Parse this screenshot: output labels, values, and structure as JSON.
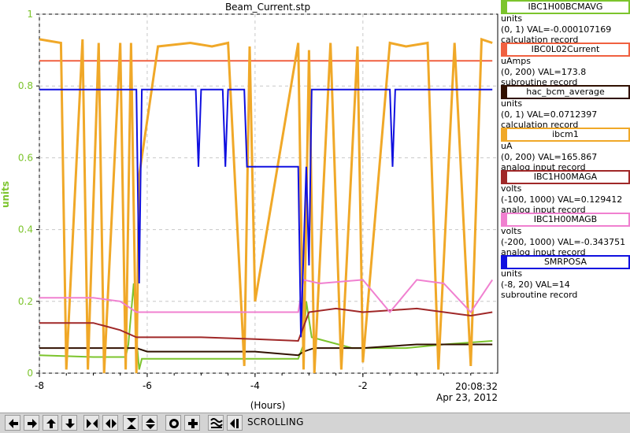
{
  "chart_data": {
    "type": "line",
    "title": "Beam_Current.stp",
    "xlabel": "(Hours)",
    "ylabel": "units",
    "xlim": [
      -8,
      0.5
    ],
    "ylim": [
      0,
      1
    ],
    "x_ticks": [
      "-8",
      "-6",
      "-4",
      "-2"
    ],
    "y_ticks": [
      "0",
      "0.2",
      "0.4",
      "0.6",
      "0.8",
      "1"
    ],
    "grid": true,
    "series": [
      {
        "name": "IBC1H00BCMAVG",
        "color": "#7cc42c",
        "x": [
          -8,
          -7,
          -6.4,
          -6.35,
          -6.25,
          -6.2,
          -6.15,
          -6.1,
          -5,
          -4.2,
          -3.2,
          -3.1,
          -3.05,
          -2.95,
          -2.2,
          -1.2,
          -0.5,
          0.4
        ],
        "values": [
          0.05,
          0.045,
          0.045,
          0.08,
          0.25,
          0.1,
          0.01,
          0.04,
          0.04,
          0.04,
          0.04,
          0.08,
          0.2,
          0.1,
          0.07,
          0.07,
          0.08,
          0.09
        ]
      },
      {
        "name": "IBC0L02Current",
        "color": "#f06040",
        "x": [
          -8,
          0.4
        ],
        "values": [
          0.87,
          0.87
        ]
      },
      {
        "name": "hac_bcm_average",
        "color": "#301000",
        "x": [
          -8,
          -6.2,
          -6,
          -4,
          -3.2,
          -3.1,
          -2.9,
          -2,
          -1,
          0.4
        ],
        "values": [
          0.07,
          0.07,
          0.06,
          0.06,
          0.05,
          0.06,
          0.07,
          0.07,
          0.08,
          0.08
        ]
      },
      {
        "name": "ibcm1",
        "color": "#f0a828",
        "x": [
          -8,
          -7.6,
          -7.5,
          -7.2,
          -7.1,
          -6.9,
          -6.8,
          -6.5,
          -6.4,
          -6.3,
          -6.2,
          -6.15,
          -5.8,
          -5.2,
          -4.8,
          -4.5,
          -4.2,
          -4.1,
          -4,
          -3.2,
          -3.1,
          -3.0,
          -2.9,
          -2.6,
          -2.4,
          -2.1,
          -2.0,
          -1.5,
          -1.2,
          -0.8,
          -0.6,
          -0.3,
          0.0,
          0.2,
          0.4
        ],
        "values": [
          0.93,
          0.92,
          0.01,
          0.93,
          0.01,
          0.92,
          0.0,
          0.92,
          0.01,
          0.92,
          0.0,
          0.55,
          0.91,
          0.92,
          0.91,
          0.92,
          0.02,
          0.91,
          0.2,
          0.92,
          0.01,
          0.9,
          0.0,
          0.92,
          0.01,
          0.91,
          0.03,
          0.92,
          0.91,
          0.92,
          0.01,
          0.92,
          0.02,
          0.93,
          0.92
        ]
      },
      {
        "name": "IBC1H00MAGA",
        "color": "#a02828",
        "x": [
          -8,
          -7,
          -6.5,
          -6.2,
          -5.5,
          -5,
          -4,
          -3.2,
          -3.0,
          -2.5,
          -2,
          -1,
          0,
          0.4
        ],
        "values": [
          0.14,
          0.14,
          0.12,
          0.1,
          0.1,
          0.1,
          0.095,
          0.09,
          0.17,
          0.18,
          0.17,
          0.18,
          0.16,
          0.17
        ]
      },
      {
        "name": "IBC1H00MAGB",
        "color": "#f080d0",
        "x": [
          -8,
          -7,
          -6.5,
          -6.2,
          -5.5,
          -4,
          -3.2,
          -3.1,
          -2.8,
          -2,
          -1.5,
          -1,
          -0.5,
          0,
          0.4
        ],
        "values": [
          0.21,
          0.21,
          0.2,
          0.17,
          0.17,
          0.17,
          0.17,
          0.26,
          0.25,
          0.26,
          0.17,
          0.26,
          0.25,
          0.17,
          0.26
        ]
      },
      {
        "name": "SMRPOSA",
        "color": "#1010e0",
        "x": [
          -8,
          -6.2,
          -6.15,
          -6.1,
          -5.1,
          -5.05,
          -5.0,
          -4.6,
          -4.55,
          -4.5,
          -4.2,
          -4.15,
          -3.2,
          -3.15,
          -3.05,
          -3.0,
          -2.95,
          -2.9,
          -1.5,
          -1.45,
          -1.4,
          0.4
        ],
        "values": [
          0.79,
          0.79,
          0.25,
          0.79,
          0.79,
          0.575,
          0.79,
          0.79,
          0.575,
          0.79,
          0.79,
          0.575,
          0.575,
          0.1,
          0.575,
          0.3,
          0.79,
          0.79,
          0.79,
          0.575,
          0.79,
          0.79
        ]
      }
    ]
  },
  "legend": [
    {
      "name": "IBC1H00BCMAVG",
      "color": "#7cc42c",
      "unit": "units",
      "range": "(0, 1) VAL=-0.000107169",
      "type": "calculation record"
    },
    {
      "name": "IBC0L02Current",
      "color": "#f06040",
      "unit": "uAmps",
      "range": "(0, 200) VAL=173.8",
      "type": "subroutine record"
    },
    {
      "name": "hac_bcm_average",
      "color": "#301000",
      "unit": "units",
      "range": "(0, 1) VAL=0.0712397",
      "type": "calculation record"
    },
    {
      "name": "ibcm1",
      "color": "#f0a828",
      "unit": "uA",
      "range": "(0, 200) VAL=165.867",
      "type": "analog input record"
    },
    {
      "name": "IBC1H00MAGA",
      "color": "#a02828",
      "unit": "volts",
      "range": "(-100, 1000) VAL=0.129412",
      "type": "analog input record"
    },
    {
      "name": "IBC1H00MAGB",
      "color": "#f080d0",
      "unit": "volts",
      "range": "(-200, 1000) VAL=-0.343751",
      "type": "analog input record"
    },
    {
      "name": "SMRPOSA",
      "color": "#1010e0",
      "unit": "units",
      "range": "(-8, 20) VAL=14",
      "type": "subroutine record"
    }
  ],
  "time": {
    "clock": "20:08:32",
    "date": "Apr 23, 2012"
  },
  "toolbar": {
    "status": "SCROLLING",
    "buttons": [
      "arrow-left-icon",
      "arrow-right-icon",
      "arrow-up-icon",
      "arrow-down-icon",
      "zoom-in-horizontal-icon",
      "zoom-out-horizontal-icon",
      "zoom-in-vertical-icon",
      "zoom-out-vertical-icon",
      "target-icon",
      "plus-icon",
      "autoscale-icon",
      "scroll-toggle-icon"
    ]
  }
}
